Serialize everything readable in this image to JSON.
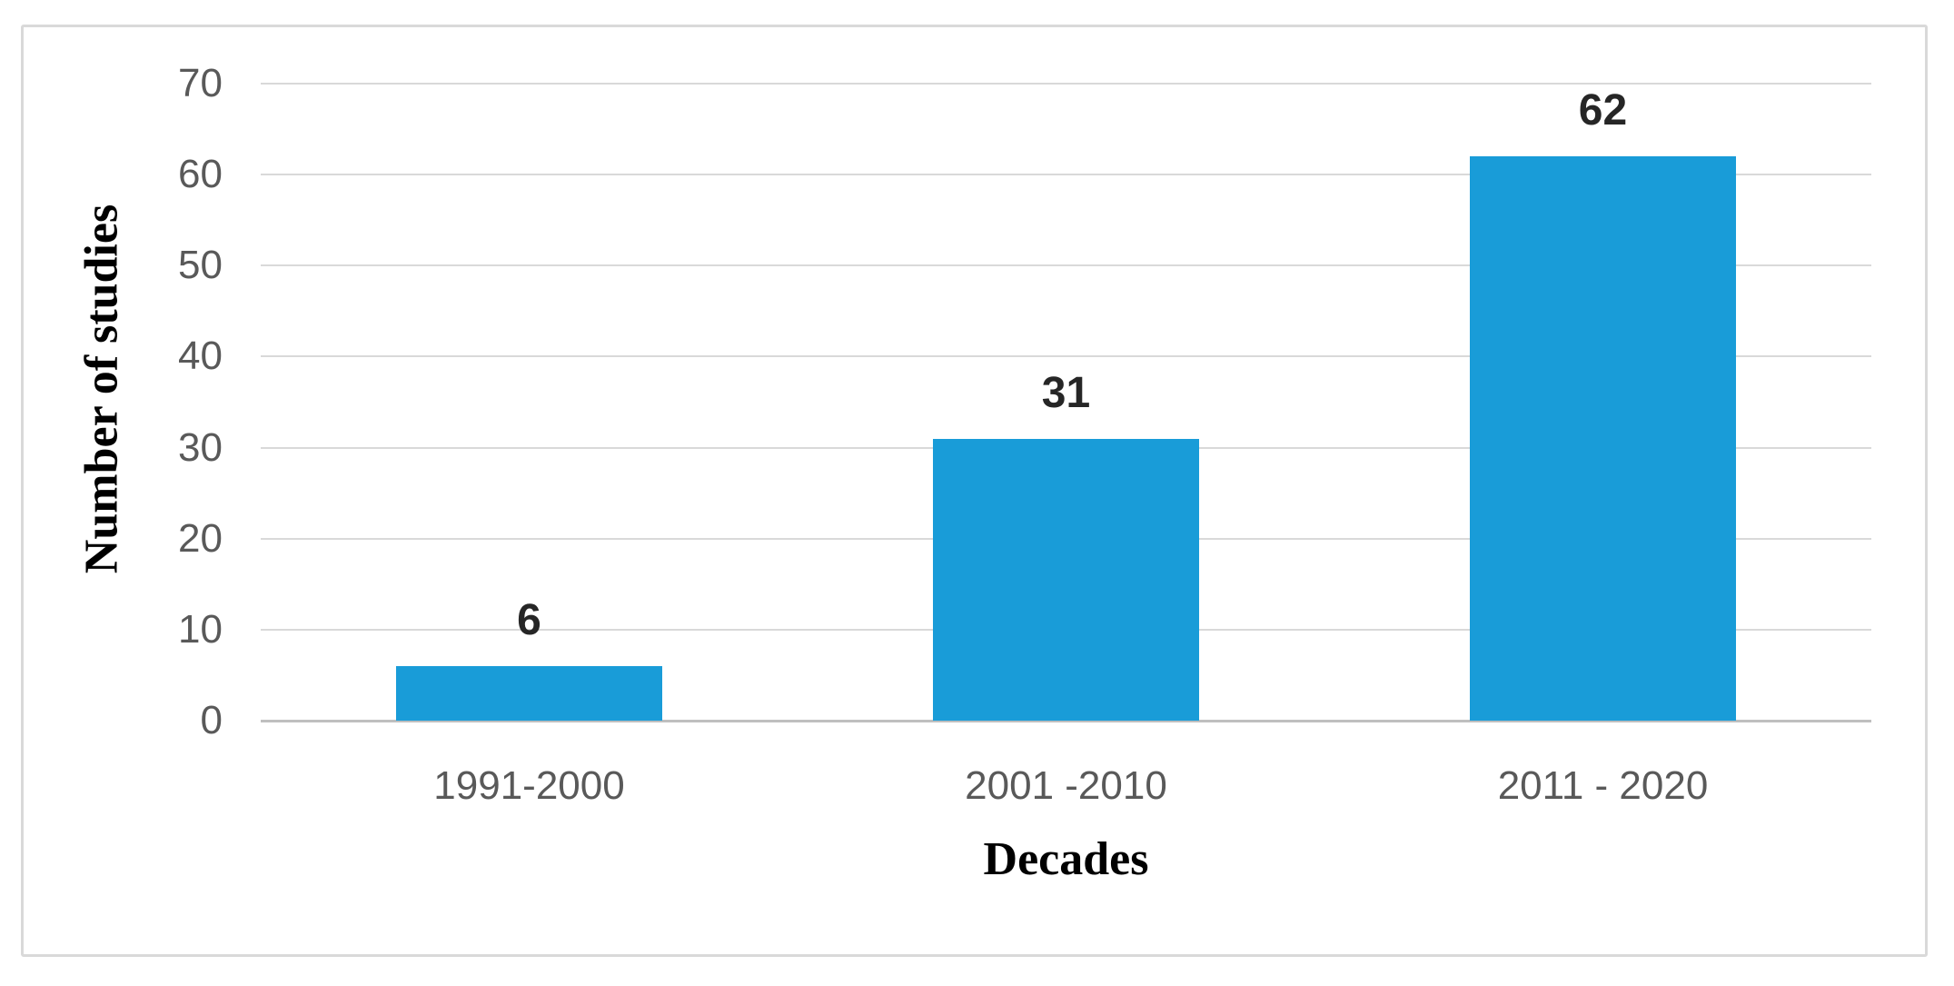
{
  "chart_data": {
    "type": "bar",
    "title": "",
    "categories": [
      "1991-2000",
      "2001 -2010",
      "2011 - 2020"
    ],
    "values": [
      6,
      31,
      62
    ],
    "data_labels": [
      "6",
      "31",
      "62"
    ],
    "xlabel": "Decades",
    "ylabel": "Number of studies",
    "ylim": [
      0,
      70
    ],
    "yticks": [
      0,
      10,
      20,
      30,
      40,
      50,
      60,
      70
    ],
    "grid": "horizontal",
    "legend": "none",
    "colors": {
      "bar": "#199CD8",
      "gridline": "#d9d9d9",
      "axis_line": "#bfbfbf",
      "tick_label": "#595959",
      "data_label": "#262626",
      "axis_title": "#000000",
      "figure_border": "#d9d9d9",
      "background": "#ffffff"
    }
  }
}
